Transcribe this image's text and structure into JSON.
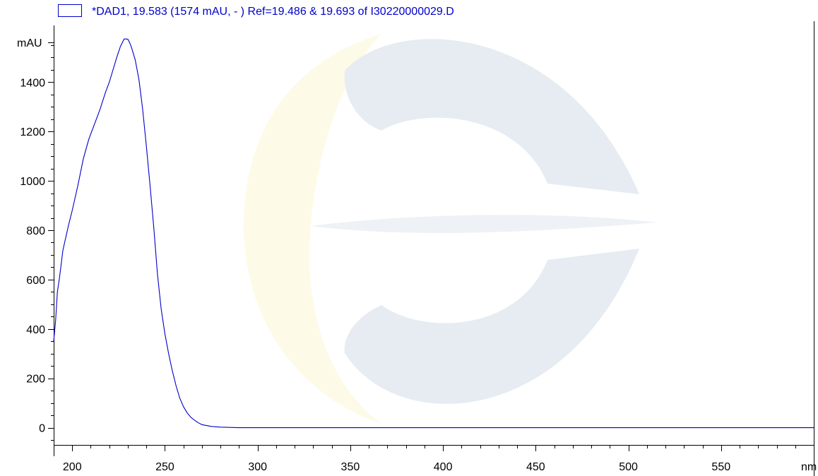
{
  "colors": {
    "series": "#0000cc",
    "axis": "#000000",
    "watermark_gray": "#e6ecf2",
    "watermark_yellow": "#fdfbe8"
  },
  "chart_data": {
    "type": "line",
    "title": "",
    "xlabel": "",
    "ylabel": "",
    "x_unit": "nm",
    "y_unit": "mAU",
    "xlim": [
      190,
      600
    ],
    "ylim": [
      -70,
      1630
    ],
    "x_ticks": [
      200,
      250,
      300,
      350,
      400,
      450,
      500,
      550
    ],
    "y_ticks": [
      0,
      200,
      400,
      600,
      800,
      1000,
      1200,
      1400
    ],
    "legend_position": "top-left",
    "grid": false,
    "series": [
      {
        "name": "*DAD1, 19.583 (1574 mAU, - ) Ref=19.486 & 19.693 of I30220000029.D",
        "x": [
          190,
          191,
          192,
          193,
          195,
          198,
          200,
          203,
          206,
          209,
          212,
          215,
          218,
          220,
          222,
          224,
          226,
          227,
          228,
          229,
          230,
          231,
          232,
          234,
          236,
          238,
          240,
          242,
          244,
          246,
          248,
          250,
          252,
          254,
          256,
          258,
          260,
          262,
          264,
          266,
          268,
          270,
          275,
          280,
          290,
          300,
          350,
          400,
          450,
          500,
          550,
          600
        ],
        "y": [
          350,
          430,
          550,
          600,
          720,
          820,
          880,
          980,
          1090,
          1170,
          1230,
          1290,
          1360,
          1400,
          1450,
          1500,
          1545,
          1560,
          1575,
          1575,
          1574,
          1560,
          1540,
          1490,
          1410,
          1290,
          1140,
          980,
          810,
          620,
          480,
          380,
          300,
          230,
          170,
          120,
          85,
          60,
          42,
          30,
          20,
          12,
          5,
          2,
          0,
          0,
          0,
          0,
          0,
          0,
          0,
          0
        ]
      }
    ]
  }
}
